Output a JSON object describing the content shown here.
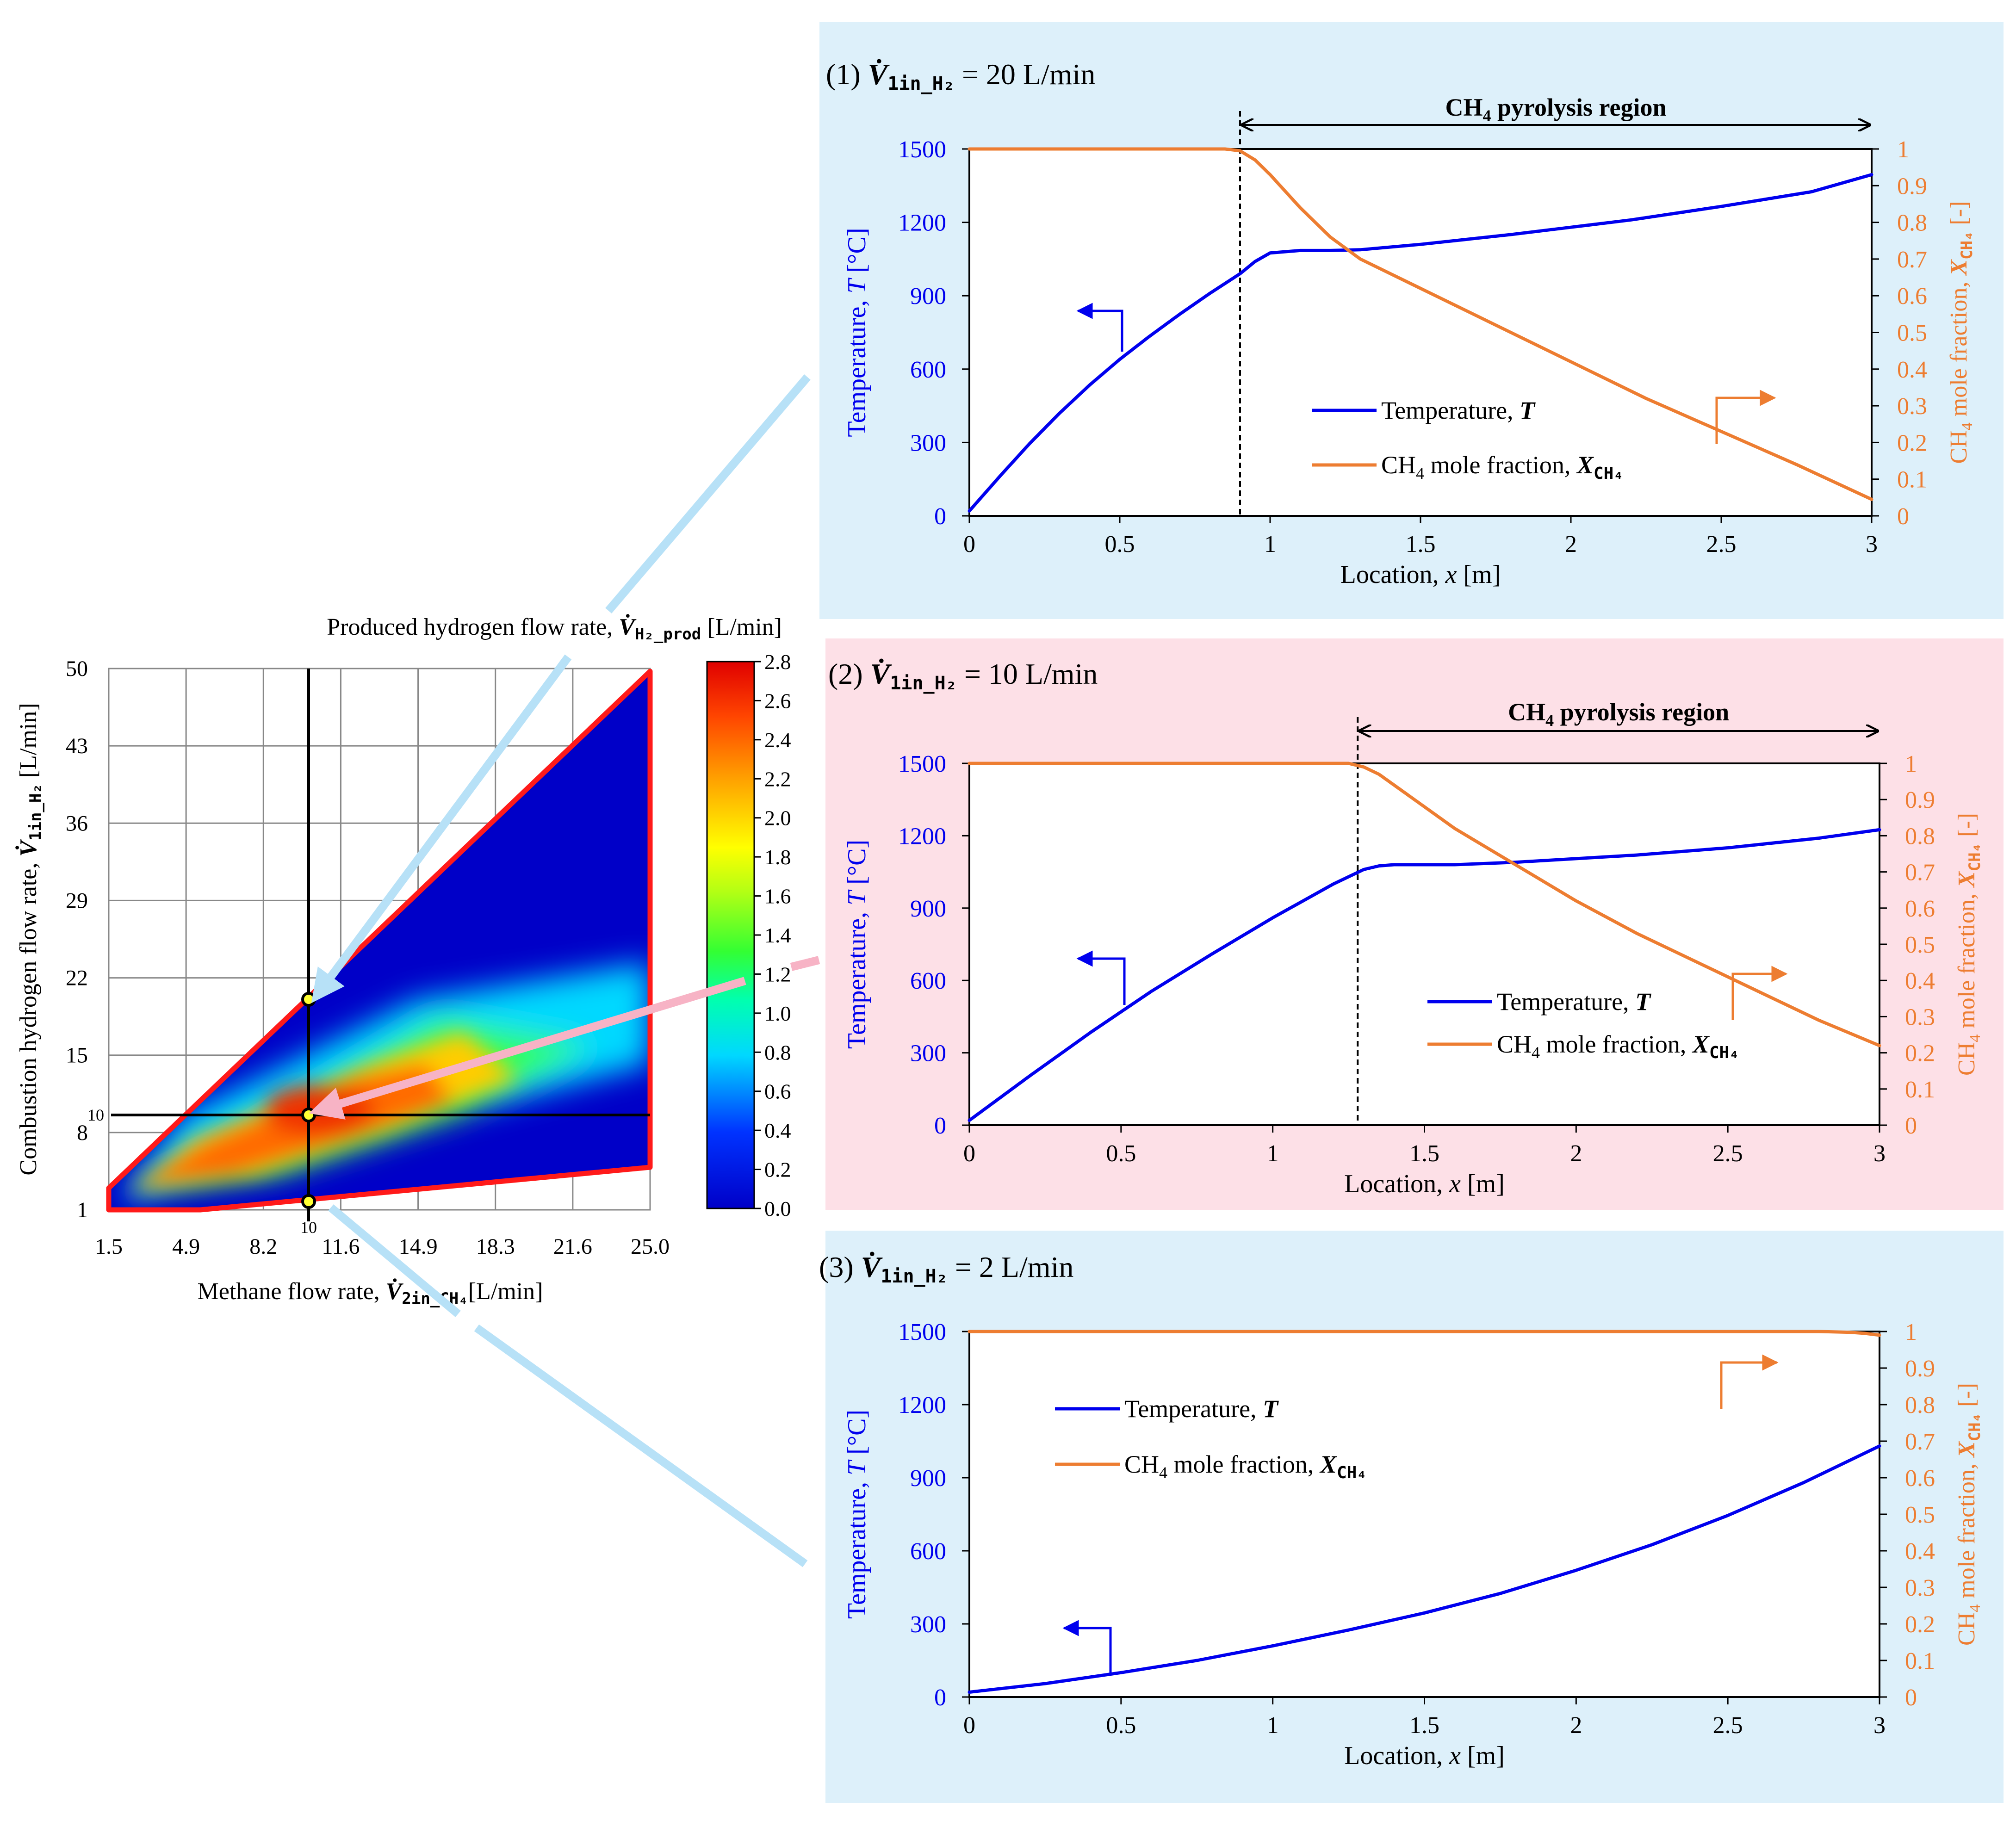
{
  "colors": {
    "panel_blue": "#ddf0fa",
    "panel_pink": "#fde0e7",
    "temperature": "#0000ee",
    "ch4": "#ed7d31",
    "outline": "#ff1a1a",
    "connector_blue": "#b7e1f7",
    "connector_pink": "#f7b3c5",
    "marker": "#ffff33"
  },
  "contour": {
    "title_prefix": "Produced hydrogen flow rate, ",
    "title_var": "V̇",
    "title_sub": "H₂_prod",
    "title_suffix": " [L/min]",
    "xlabel_prefix": "Methane flow rate, ",
    "xlabel_var": "V̇",
    "xlabel_sub": "2in_CH₄",
    "xlabel_suffix": "[L/min]",
    "ylabel_prefix": "Combustion hydrogen flow rate, ",
    "ylabel_var": "V̇",
    "ylabel_sub": "1in_H₂",
    "ylabel_suffix": " [L/min]",
    "x_ticks": [
      "1.5",
      "4.9",
      "8.2",
      "11.6",
      "14.9",
      "18.3",
      "21.6",
      "25.0"
    ],
    "y_ticks": [
      "1",
      "8",
      "15",
      "22",
      "29",
      "36",
      "43",
      "50"
    ],
    "colorbar_ticks": [
      "2.8",
      "2.6",
      "2.4",
      "2.2",
      "2.0",
      "1.8",
      "1.6",
      "1.4",
      "1.2",
      "1.0",
      "0.8",
      "0.6",
      "0.4",
      "0.2",
      "0.0"
    ],
    "crosshair_x_label": "10",
    "crosshair_y_label": "10"
  },
  "chart_data": [
    {
      "type": "heatmap",
      "title": "Produced hydrogen flow rate, V̇_H2_prod [L/min]",
      "xlabel": "Methane flow rate, V̇_2in_CH4 [L/min]",
      "ylabel": "Combustion hydrogen flow rate, V̇_1in_H2 [L/min]",
      "xlim": [
        1.5,
        25.0
      ],
      "ylim": [
        1,
        50
      ],
      "colorbar_range": [
        0.0,
        2.8
      ],
      "feasible_region_outline": [
        [
          1.5,
          1
        ],
        [
          6.0,
          1
        ],
        [
          25.0,
          5.5
        ],
        [
          25.0,
          50
        ],
        [
          1.5,
          3.5
        ]
      ],
      "highlighted_points": [
        {
          "x": 10,
          "y": 20
        },
        {
          "x": 10,
          "y": 10
        },
        {
          "x": 10,
          "y": 2
        }
      ]
    },
    {
      "type": "line",
      "panel_prefix": "(1) ",
      "panel_var": "V̇",
      "panel_sub": "1in_H₂",
      "panel_value": " = 20 L/min",
      "region_label": "CH",
      "region_label_sub": "4",
      "region_label_rest": " pyrolysis region",
      "region_start": 0.9,
      "region_end": 3.0,
      "xlabel_prefix": "Location, ",
      "xlabel_var": "x",
      "xlabel_suffix": " [m]",
      "ylabel_prefix": "Temperature, ",
      "ylabel_var": "T",
      "ylabel_suffix": " [°C]",
      "y2label_prefix": "CH",
      "y2label_sub": "4",
      "y2label_mid": " mole fraction, ",
      "y2label_var": "X",
      "y2label_var_sub": "CH₄",
      "y2label_suffix": " [-]",
      "legend_temp": "Temperature, ",
      "legend_temp_var": "T",
      "legend_ch4_prefix": "CH",
      "legend_ch4_sub": "4",
      "legend_ch4_mid": " mole fraction, ",
      "legend_ch4_var": "X",
      "legend_ch4_var_sub": "CH₄",
      "x_ticks": [
        "0",
        "0.5",
        "1",
        "1.5",
        "2",
        "2.5",
        "3"
      ],
      "y_ticks": [
        "0",
        "300",
        "600",
        "900",
        "1200",
        "1500"
      ],
      "y2_ticks": [
        "0",
        "0.1",
        "0.2",
        "0.3",
        "0.4",
        "0.5",
        "0.6",
        "0.7",
        "0.8",
        "0.9",
        "1"
      ],
      "xlim": [
        0,
        3
      ],
      "ylim": [
        0,
        1500
      ],
      "y2lim": [
        0,
        1
      ],
      "series": [
        {
          "name": "Temperature, T",
          "axis": "left",
          "x": [
            0,
            0.1,
            0.2,
            0.3,
            0.4,
            0.5,
            0.6,
            0.7,
            0.8,
            0.9,
            0.95,
            1.0,
            1.1,
            1.2,
            1.3,
            1.5,
            1.8,
            2.0,
            2.2,
            2.5,
            2.8,
            3.0
          ],
          "values": [
            20,
            160,
            295,
            420,
            535,
            640,
            735,
            825,
            910,
            990,
            1040,
            1075,
            1085,
            1085,
            1088,
            1110,
            1150,
            1180,
            1210,
            1265,
            1325,
            1395
          ]
        },
        {
          "name": "CH4 mole fraction, X_CH4",
          "axis": "right",
          "x": [
            0,
            0.5,
            0.85,
            0.9,
            0.95,
            1.0,
            1.1,
            1.2,
            1.3,
            1.5,
            1.75,
            2.0,
            2.25,
            2.5,
            2.75,
            3.0
          ],
          "values": [
            1.0,
            1.0,
            1.0,
            0.995,
            0.97,
            0.93,
            0.84,
            0.76,
            0.7,
            0.62,
            0.52,
            0.42,
            0.32,
            0.23,
            0.14,
            0.045
          ]
        }
      ]
    },
    {
      "type": "line",
      "panel_prefix": "(2) ",
      "panel_var": "V̇",
      "panel_sub": "1in_H₂",
      "panel_value": " = 10 L/min",
      "region_label": "CH",
      "region_label_sub": "4",
      "region_label_rest": " pyrolysis region",
      "region_start": 1.28,
      "region_end": 3.0,
      "xlabel_prefix": "Location, ",
      "xlabel_var": "x",
      "xlabel_suffix": " [m]",
      "ylabel_prefix": "Temperature, ",
      "ylabel_var": "T",
      "ylabel_suffix": " [°C]",
      "y2label_prefix": "CH",
      "y2label_sub": "4",
      "y2label_mid": " mole fraction, ",
      "y2label_var": "X",
      "y2label_var_sub": "CH₄",
      "y2label_suffix": " [-]",
      "legend_temp": "Temperature, ",
      "legend_temp_var": "T",
      "legend_ch4_prefix": "CH",
      "legend_ch4_sub": "4",
      "legend_ch4_mid": " mole fraction, ",
      "legend_ch4_var": "X",
      "legend_ch4_var_sub": "CH₄",
      "x_ticks": [
        "0",
        "0.5",
        "1",
        "1.5",
        "2",
        "2.5",
        "3"
      ],
      "y_ticks": [
        "0",
        "300",
        "600",
        "900",
        "1200",
        "1500"
      ],
      "y2_ticks": [
        "0",
        "0.1",
        "0.2",
        "0.3",
        "0.4",
        "0.5",
        "0.6",
        "0.7",
        "0.8",
        "0.9",
        "1"
      ],
      "xlim": [
        0,
        3
      ],
      "ylim": [
        0,
        1500
      ],
      "y2lim": [
        0,
        1
      ],
      "series": [
        {
          "name": "Temperature, T",
          "axis": "left",
          "x": [
            0,
            0.2,
            0.4,
            0.6,
            0.8,
            1.0,
            1.2,
            1.3,
            1.35,
            1.4,
            1.5,
            1.6,
            1.8,
            2.0,
            2.2,
            2.5,
            2.8,
            3.0
          ],
          "values": [
            20,
            205,
            385,
            555,
            710,
            860,
            1000,
            1060,
            1075,
            1080,
            1080,
            1080,
            1090,
            1105,
            1120,
            1150,
            1190,
            1225
          ]
        },
        {
          "name": "CH4 mole fraction, X_CH4",
          "axis": "right",
          "x": [
            0,
            1.0,
            1.25,
            1.3,
            1.35,
            1.4,
            1.5,
            1.6,
            1.7,
            1.8,
            2.0,
            2.2,
            2.4,
            2.6,
            2.8,
            3.0
          ],
          "values": [
            1.0,
            1.0,
            1.0,
            0.99,
            0.97,
            0.94,
            0.88,
            0.82,
            0.77,
            0.72,
            0.62,
            0.53,
            0.45,
            0.37,
            0.29,
            0.22
          ]
        }
      ]
    },
    {
      "type": "line",
      "panel_prefix": "(3) ",
      "panel_var": "V̇",
      "panel_sub": "1in_H₂",
      "panel_value": " = 2 L/min",
      "xlabel_prefix": "Location, ",
      "xlabel_var": "x",
      "xlabel_suffix": " [m]",
      "ylabel_prefix": "Temperature, ",
      "ylabel_var": "T",
      "ylabel_suffix": " [°C]",
      "y2label_prefix": "CH",
      "y2label_sub": "4",
      "y2label_mid": " mole fraction, ",
      "y2label_var": "X",
      "y2label_var_sub": "CH₄",
      "y2label_suffix": " [-]",
      "legend_temp": "Temperature, ",
      "legend_temp_var": "T",
      "legend_ch4_prefix": "CH",
      "legend_ch4_sub": "4",
      "legend_ch4_mid": " mole fraction, ",
      "legend_ch4_var": "X",
      "legend_ch4_var_sub": "CH₄",
      "x_ticks": [
        "0",
        "0.5",
        "1",
        "1.5",
        "2",
        "2.5",
        "3"
      ],
      "y_ticks": [
        "0",
        "300",
        "600",
        "900",
        "1200",
        "1500"
      ],
      "y2_ticks": [
        "0",
        "0.1",
        "0.2",
        "0.3",
        "0.4",
        "0.5",
        "0.6",
        "0.7",
        "0.8",
        "0.9",
        "1"
      ],
      "xlim": [
        0,
        3
      ],
      "ylim": [
        0,
        1500
      ],
      "y2lim": [
        0,
        1
      ],
      "series": [
        {
          "name": "Temperature, T",
          "axis": "left",
          "x": [
            0,
            0.25,
            0.5,
            0.75,
            1.0,
            1.25,
            1.5,
            1.75,
            2.0,
            2.25,
            2.5,
            2.75,
            3.0
          ],
          "values": [
            20,
            55,
            100,
            150,
            210,
            275,
            345,
            425,
            520,
            625,
            745,
            880,
            1030
          ]
        },
        {
          "name": "CH4 mole fraction, X_CH4",
          "axis": "right",
          "x": [
            0,
            1.0,
            2.0,
            2.8,
            2.9,
            2.95,
            3.0
          ],
          "values": [
            1.0,
            1.0,
            1.0,
            1.0,
            0.998,
            0.995,
            0.99
          ]
        }
      ]
    }
  ]
}
